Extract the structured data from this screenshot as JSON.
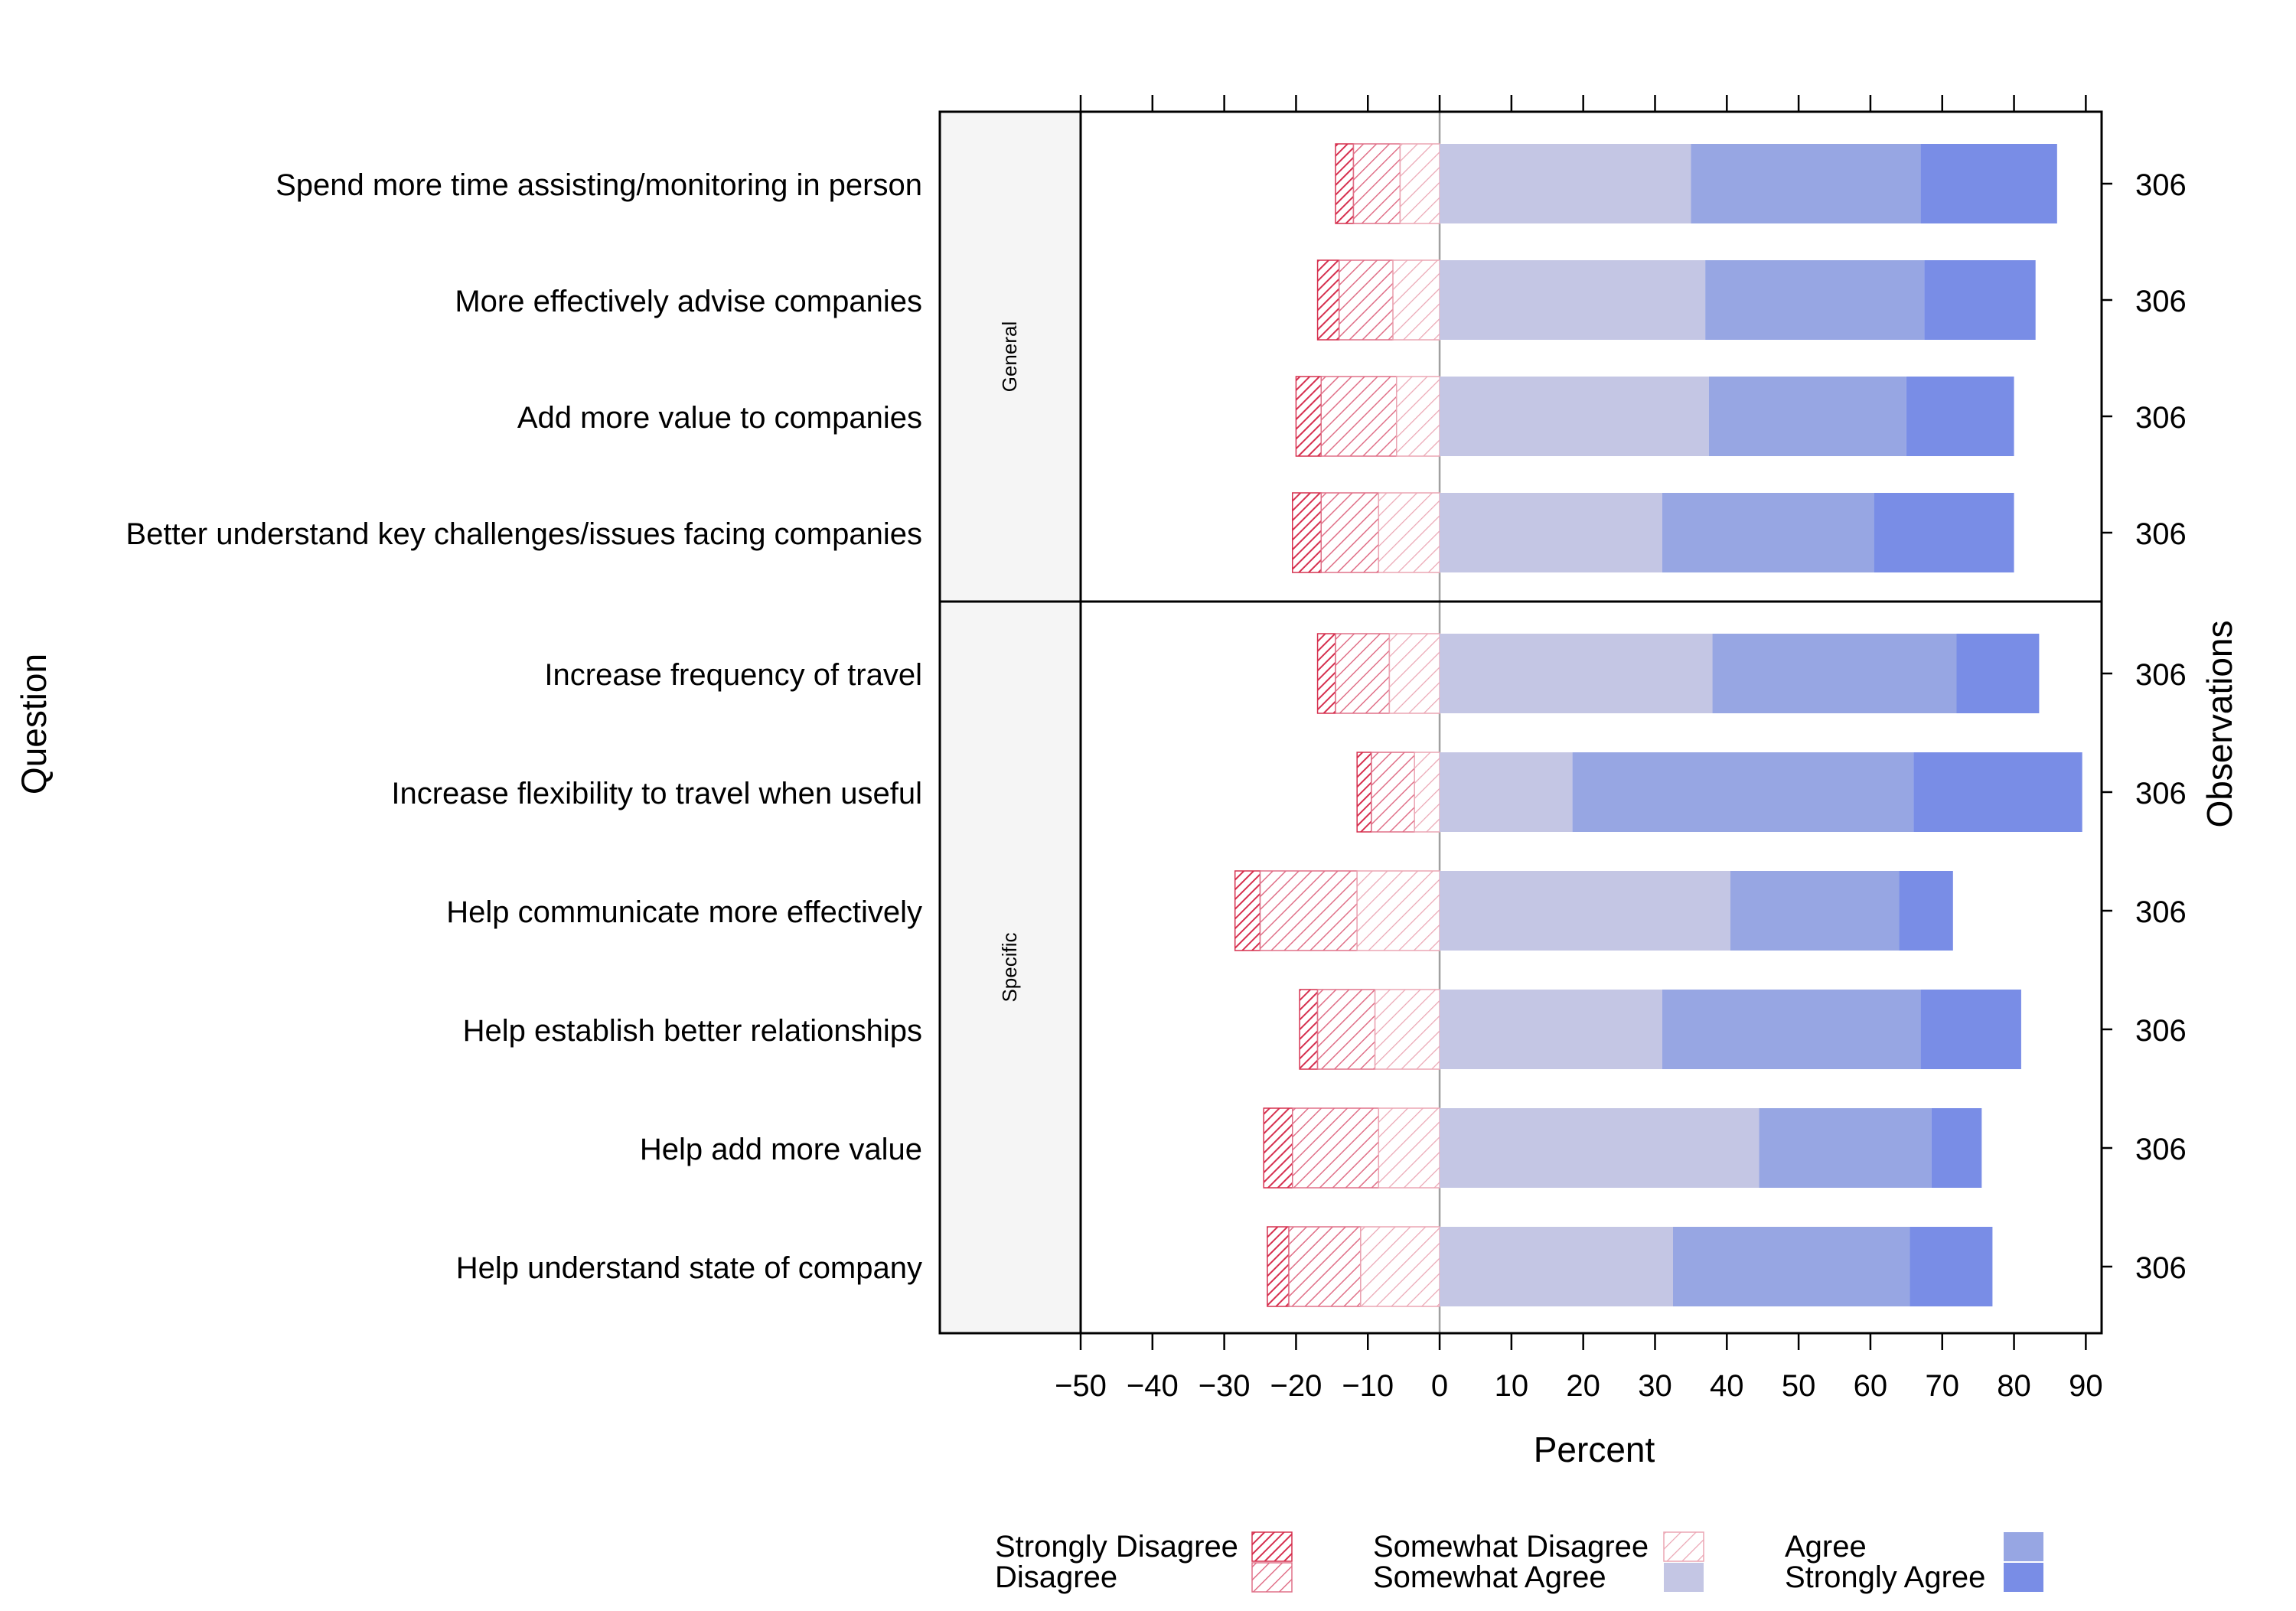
{
  "chart_data": {
    "type": "bar",
    "subtype": "diverging-stacked-likert",
    "xlabel": "Percent",
    "ylabel_left": "Question",
    "ylabel_right": "Observations",
    "xlim": [
      -50,
      90
    ],
    "xticks": [
      -50,
      -40,
      -30,
      -20,
      -10,
      0,
      10,
      20,
      30,
      40,
      50,
      60,
      70,
      80,
      90
    ],
    "tick_labels": [
      "−50",
      "−40",
      "−30",
      "−20",
      "−10",
      "0",
      "10",
      "20",
      "30",
      "40",
      "50",
      "60",
      "70",
      "80",
      "90"
    ],
    "categories_order": [
      "Strongly Disagree",
      "Disagree",
      "Somewhat Disagree",
      "Somewhat Agree",
      "Agree",
      "Strongly Agree"
    ],
    "colors": {
      "Strongly Disagree": "#d6304f",
      "Disagree": "#e07088",
      "Somewhat Disagree": "#eba6b4",
      "Somewhat Agree": "#c4c6e4",
      "Agree": "#97a6e3",
      "Strongly Agree": "#798de6"
    },
    "panels": [
      {
        "name": "General",
        "rows": [
          {
            "question": "Spend more time assisting/monitoring in person",
            "observations": "306",
            "values": [
              2.5,
              6.5,
              5.5,
              35.0,
              32.0,
              19.0
            ]
          },
          {
            "question": "More effectively advise companies",
            "observations": "306",
            "values": [
              3.0,
              7.5,
              6.5,
              37.0,
              30.5,
              15.5
            ]
          },
          {
            "question": "Add more value to companies",
            "observations": "306",
            "values": [
              3.5,
              10.5,
              6.0,
              37.5,
              27.5,
              15.0
            ]
          },
          {
            "question": "Better understand key challenges/issues facing companies",
            "observations": "306",
            "values": [
              4.0,
              8.0,
              8.5,
              31.0,
              29.5,
              19.5
            ]
          }
        ]
      },
      {
        "name": "Specific",
        "rows": [
          {
            "question": "Increase frequency of travel",
            "observations": "306",
            "values": [
              2.5,
              7.5,
              7.0,
              38.0,
              34.0,
              11.5
            ]
          },
          {
            "question": "Increase flexibility to travel when useful",
            "observations": "306",
            "values": [
              2.0,
              6.0,
              3.5,
              18.5,
              47.5,
              23.5
            ]
          },
          {
            "question": "Help communicate more effectively",
            "observations": "306",
            "values": [
              3.5,
              13.5,
              11.5,
              40.5,
              23.5,
              7.5
            ]
          },
          {
            "question": "Help establish better relationships",
            "observations": "306",
            "values": [
              2.5,
              8.0,
              9.0,
              31.0,
              36.0,
              14.0
            ]
          },
          {
            "question": "Help add more value",
            "observations": "306",
            "values": [
              4.0,
              12.0,
              8.5,
              44.5,
              24.0,
              7.0
            ]
          },
          {
            "question": "Help understand state of company",
            "observations": "306",
            "values": [
              3.0,
              10.0,
              11.0,
              32.5,
              33.0,
              11.5
            ]
          }
        ]
      }
    ],
    "legend": {
      "position": "bottom",
      "columns": [
        [
          "Strongly Disagree",
          "Disagree"
        ],
        [
          "Somewhat Disagree",
          "Somewhat Agree"
        ],
        [
          "Agree",
          "Strongly Agree"
        ]
      ]
    }
  }
}
